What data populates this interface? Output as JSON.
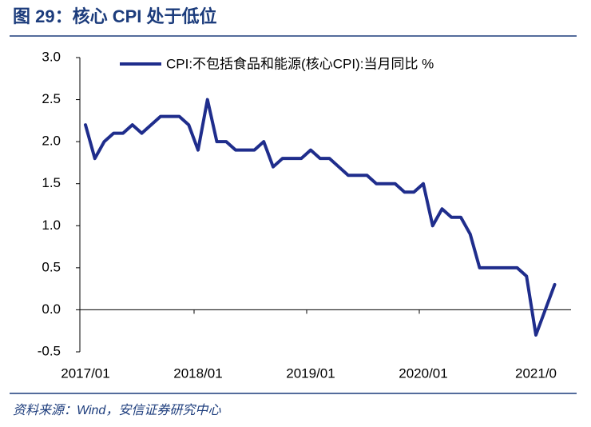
{
  "title": "图 29：核心 CPI 处于低位",
  "source": "资料来源：Wind，安信证券研究中心",
  "chart_data": {
    "type": "line",
    "categories": [
      "2017/01",
      null,
      null,
      null,
      null,
      null,
      null,
      null,
      null,
      null,
      null,
      null,
      "2018/01",
      null,
      null,
      null,
      null,
      null,
      null,
      null,
      null,
      null,
      null,
      null,
      "2019/01",
      null,
      null,
      null,
      null,
      null,
      null,
      null,
      null,
      null,
      null,
      null,
      "2020/01",
      null,
      null,
      null,
      null,
      null,
      null,
      null,
      null,
      null,
      null,
      null,
      "2021/0",
      null,
      null
    ],
    "series": [
      {
        "name": "CPI:不包括食品和能源(核心CPI):当月同比 %",
        "color": "#1f2d8c",
        "values": [
          2.2,
          1.8,
          2.0,
          2.1,
          2.1,
          2.2,
          2.1,
          2.2,
          2.3,
          2.3,
          2.3,
          2.2,
          1.9,
          2.5,
          2.0,
          2.0,
          1.9,
          1.9,
          1.9,
          2.0,
          1.7,
          1.8,
          1.8,
          1.8,
          1.9,
          1.8,
          1.8,
          1.7,
          1.6,
          1.6,
          1.6,
          1.5,
          1.5,
          1.5,
          1.4,
          1.4,
          1.5,
          1.0,
          1.2,
          1.1,
          1.1,
          0.9,
          0.5,
          0.5,
          0.5,
          0.5,
          0.5,
          0.4,
          -0.3,
          0.0,
          0.3
        ]
      }
    ],
    "ylim": [
      -0.5,
      3.0
    ],
    "yticks": [
      -0.5,
      {
        "value": 0,
        "label": "0.0"
      },
      0.5,
      {
        "value": 1,
        "label": "1.0"
      },
      1.5,
      {
        "value": 2,
        "label": "2.0"
      },
      2.5,
      {
        "value": 3,
        "label": "3.0"
      }
    ],
    "legend": "top"
  }
}
